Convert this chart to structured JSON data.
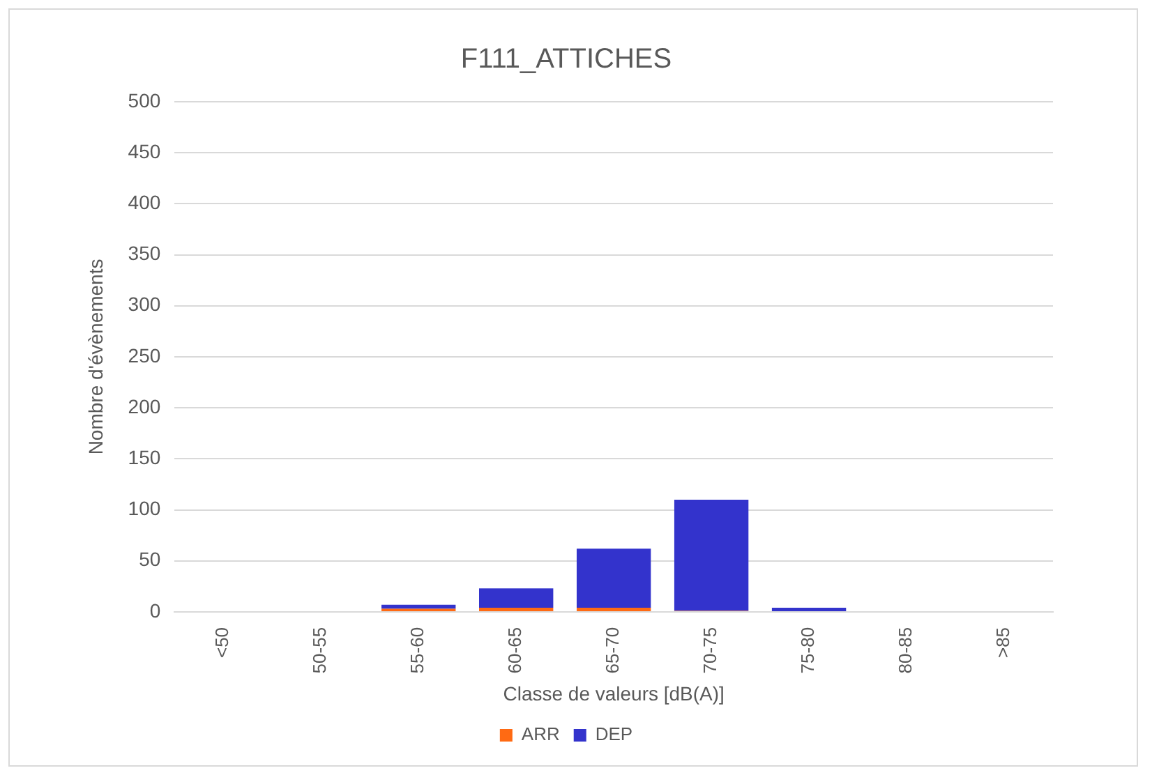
{
  "chart_data": {
    "type": "bar",
    "title": "F111_ATTICHES",
    "xlabel": "Classe de valeurs [dB(A)]",
    "ylabel": "Nombre d'évènements",
    "categories": [
      "<50",
      "50-55",
      "55-60",
      "60-65",
      "65-70",
      "70-75",
      "75-80",
      "80-85",
      ">85"
    ],
    "series": [
      {
        "name": "ARR",
        "color": "#ff6a13",
        "values": [
          0,
          0,
          3,
          4,
          4,
          1,
          0,
          0,
          0
        ]
      },
      {
        "name": "DEP",
        "color": "#3333cc",
        "values": [
          0,
          0,
          4,
          19,
          58,
          109,
          4,
          0,
          0
        ]
      }
    ],
    "stacked": true,
    "ylim": [
      0,
      500
    ],
    "yticks": [
      0,
      50,
      100,
      150,
      200,
      250,
      300,
      350,
      400,
      450,
      500
    ],
    "grid": "y",
    "legend": "bottom"
  }
}
